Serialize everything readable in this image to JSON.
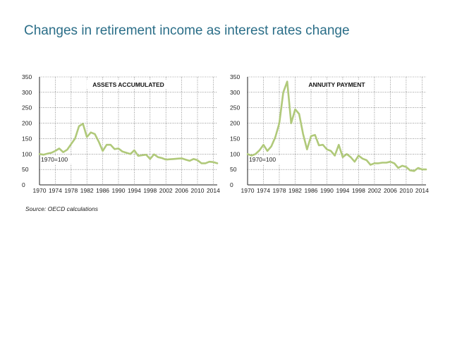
{
  "slide": {
    "title": "Changes in retirement income as interest rates change",
    "source": "Source: OECD calculations"
  },
  "colors": {
    "line": "#b0c97a",
    "grid": "#555555",
    "axis": "#222222",
    "title": "#2b6e88"
  },
  "chart_data": [
    {
      "type": "line",
      "title": "ASSETS ACCUMULATED",
      "annotation": "1970=100",
      "ylim": [
        0,
        350
      ],
      "yticks": [
        0,
        50,
        100,
        150,
        200,
        250,
        300,
        350
      ],
      "xlim": [
        1970,
        2015
      ],
      "xticks": [
        1970,
        1974,
        1978,
        1982,
        1986,
        1990,
        1994,
        1998,
        2002,
        2006,
        2010,
        2014
      ],
      "grid": true,
      "series": [
        {
          "x": [
            1970,
            1971,
            1972,
            1973,
            1974,
            1975,
            1976,
            1977,
            1978,
            1979,
            1980,
            1981,
            1982,
            1983,
            1984,
            1985,
            1986,
            1987,
            1988,
            1989,
            1990,
            1991,
            1992,
            1993,
            1994,
            1995,
            1996,
            1997,
            1998,
            1999,
            2000,
            2001,
            2002,
            2003,
            2004,
            2005,
            2006,
            2007,
            2008,
            2009,
            2010,
            2011,
            2012,
            2013,
            2014,
            2015
          ],
          "y": [
            100,
            98,
            101,
            104,
            110,
            118,
            106,
            114,
            132,
            150,
            190,
            198,
            155,
            170,
            165,
            140,
            110,
            130,
            130,
            116,
            118,
            108,
            104,
            100,
            112,
            94,
            96,
            98,
            84,
            99,
            90,
            87,
            82,
            83,
            84,
            85,
            86,
            82,
            78,
            84,
            80,
            70,
            70,
            75,
            74,
            70
          ]
        }
      ]
    },
    {
      "type": "line",
      "title": "ANNUITY PAYMENT",
      "annotation": "1970=100",
      "ylim": [
        0,
        350
      ],
      "yticks": [
        0,
        50,
        100,
        150,
        200,
        250,
        300,
        350
      ],
      "xlim": [
        1970,
        2015
      ],
      "xticks": [
        1970,
        1974,
        1978,
        1982,
        1986,
        1990,
        1994,
        1998,
        2002,
        2006,
        2010,
        2014
      ],
      "grid": true,
      "series": [
        {
          "x": [
            1970,
            1971,
            1972,
            1973,
            1974,
            1975,
            1976,
            1977,
            1978,
            1979,
            1980,
            1981,
            1982,
            1983,
            1984,
            1985,
            1986,
            1987,
            1988,
            1989,
            1990,
            1991,
            1992,
            1993,
            1994,
            1995,
            1996,
            1997,
            1998,
            1999,
            2000,
            2001,
            2002,
            2003,
            2004,
            2005,
            2006,
            2007,
            2008,
            2009,
            2010,
            2011,
            2012,
            2013,
            2014,
            2015
          ],
          "y": [
            100,
            95,
            100,
            112,
            130,
            110,
            125,
            155,
            200,
            300,
            335,
            200,
            245,
            230,
            165,
            115,
            158,
            162,
            128,
            130,
            115,
            110,
            95,
            130,
            90,
            100,
            90,
            75,
            95,
            85,
            80,
            65,
            70,
            70,
            72,
            72,
            75,
            70,
            55,
            62,
            58,
            47,
            45,
            55,
            50,
            50
          ]
        }
      ]
    }
  ]
}
